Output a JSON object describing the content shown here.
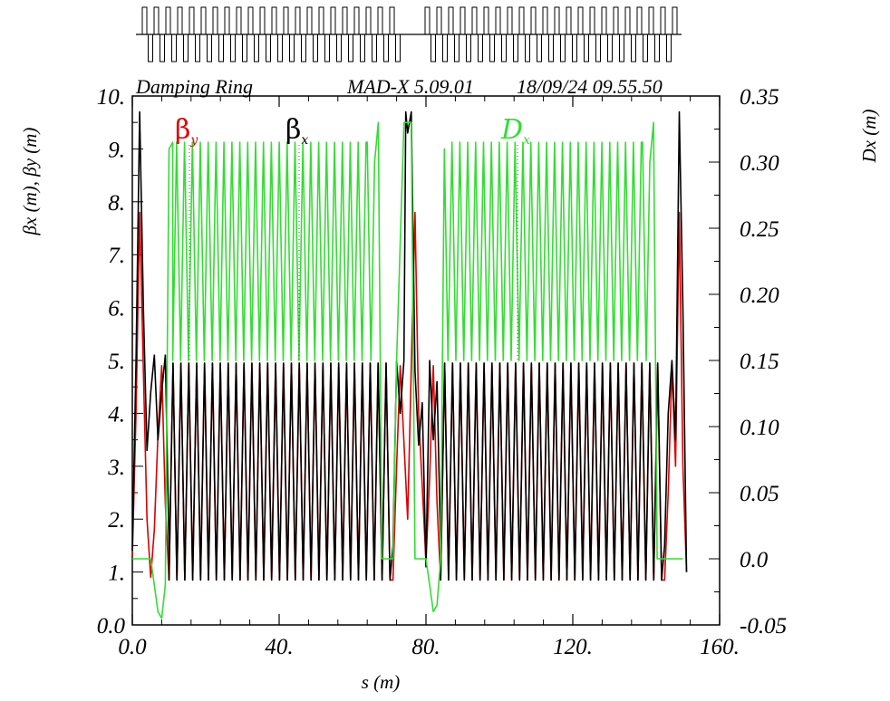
{
  "chart_data": {
    "type": "line",
    "title": "Damping Ring",
    "program": "MAD-X 5.09.01",
    "timestamp": "18/09/24 09.55.50",
    "xlabel": "s (m)",
    "ylabel_left": "βx (m), βy (m)",
    "ylabel_right": "Dx (m)",
    "xlim": [
      0,
      160
    ],
    "ylim_left": [
      0,
      10
    ],
    "ylim_right": [
      -0.05,
      0.35
    ],
    "x_ticks": [
      "0.0",
      "40.",
      "80.",
      "120.",
      "160."
    ],
    "x_tick_values": [
      0,
      40,
      80,
      120,
      160
    ],
    "y_left_ticks": [
      "0.0",
      "1.",
      "2.",
      "3.",
      "4.",
      "5.",
      "6.",
      "7.",
      "8.",
      "9.",
      "10."
    ],
    "y_left_tick_values": [
      0,
      1,
      2,
      3,
      4,
      5,
      6,
      7,
      8,
      9,
      10
    ],
    "y_right_ticks": [
      "-0.05",
      "0.0",
      "0.05",
      "0.10",
      "0.15",
      "0.20",
      "0.25",
      "0.30",
      "0.35"
    ],
    "y_right_tick_values": [
      -0.05,
      0,
      0.05,
      0.1,
      0.15,
      0.2,
      0.25,
      0.3,
      0.35
    ],
    "legend": {
      "beta_y": {
        "symbol": "β",
        "sub": "y"
      },
      "beta_x": {
        "symbol": "β",
        "sub": "x"
      },
      "disp": {
        "symbol": "D",
        "sub": "x"
      }
    },
    "series": [
      {
        "name": "βy",
        "axis": "left",
        "color": "#dd0000",
        "description": "red: arc cells oscillate between ~0.85 m and ~4.95 m; peaks ~7.8 m at ring ends",
        "points": [
          [
            0,
            1.3
          ],
          [
            1,
            4.0
          ],
          [
            2,
            7.8
          ],
          [
            3,
            4.8
          ],
          [
            4,
            2.0
          ],
          [
            5,
            0.9
          ],
          [
            6,
            1.8
          ],
          [
            7,
            3.6
          ],
          [
            8,
            4.9
          ],
          [
            9,
            2.3
          ],
          [
            10,
            0.85
          ],
          [
            71,
            0.85
          ],
          [
            72,
            3.0
          ],
          [
            73,
            4.9
          ],
          [
            75,
            2.0
          ],
          [
            77,
            7.8
          ],
          [
            78,
            4.0
          ],
          [
            80,
            1.2
          ],
          [
            81,
            2.8
          ],
          [
            82,
            4.9
          ],
          [
            83,
            2.3
          ],
          [
            84,
            0.85
          ],
          [
            145,
            0.85
          ],
          [
            146,
            2.5
          ],
          [
            147,
            4.9
          ],
          [
            148,
            3.0
          ],
          [
            149,
            7.8
          ],
          [
            150,
            3.0
          ],
          [
            151,
            1.0
          ]
        ],
        "arc_ranges": [
          [
            10,
            71
          ],
          [
            84,
            145
          ]
        ],
        "arc_period": 2.15,
        "arc_min": 0.85,
        "arc_max": 4.95
      },
      {
        "name": "βx",
        "axis": "left",
        "color": "#000000",
        "description": "black: arc cells oscillate between ~0.85 m and ~4.95 m; peaks ~9.7 m at ring ends",
        "points": [
          [
            0,
            1.4
          ],
          [
            1,
            5.0
          ],
          [
            2,
            9.7
          ],
          [
            3,
            6.0
          ],
          [
            4,
            3.3
          ],
          [
            5,
            4.4
          ],
          [
            6,
            5.1
          ],
          [
            7,
            3.5
          ],
          [
            8,
            4.4
          ],
          [
            9,
            5.1
          ],
          [
            10,
            1.5
          ],
          [
            71,
            1.5
          ],
          [
            72,
            5.0
          ],
          [
            73,
            4.0
          ],
          [
            74,
            5.0
          ],
          [
            74.5,
            9.7
          ],
          [
            75,
            9.3
          ],
          [
            76,
            9.7
          ],
          [
            77,
            4.8
          ],
          [
            78,
            3.4
          ],
          [
            79,
            4.2
          ],
          [
            80,
            1.1
          ],
          [
            81,
            5.0
          ],
          [
            82,
            3.5
          ],
          [
            83,
            4.6
          ],
          [
            84,
            1.5
          ],
          [
            145,
            1.5
          ],
          [
            146,
            4.0
          ],
          [
            147,
            5.0
          ],
          [
            148,
            3.5
          ],
          [
            149,
            9.7
          ],
          [
            150,
            6.0
          ],
          [
            151,
            1.0
          ]
        ],
        "arc_ranges": [
          [
            10,
            71
          ],
          [
            84,
            145
          ]
        ],
        "arc_period": 2.15,
        "arc_min": 0.85,
        "arc_max": 4.95
      },
      {
        "name": "Dx",
        "axis": "right",
        "color": "#33dd33",
        "description": "green dispersion: arc cells oscillate between ~0.15 m and ~0.315 m; dips to ~-0.045 m near ends",
        "points": [
          [
            0,
            0.0
          ],
          [
            5,
            0.0
          ],
          [
            6,
            -0.02
          ],
          [
            7,
            -0.04
          ],
          [
            8,
            -0.045
          ],
          [
            9,
            -0.02
          ],
          [
            10,
            0.31
          ],
          [
            11,
            0.315
          ],
          [
            64,
            0.315
          ],
          [
            65,
            0.15
          ],
          [
            66,
            0.3
          ],
          [
            67,
            0.33
          ],
          [
            68,
            0.0
          ],
          [
            71,
            0.0
          ],
          [
            72,
            0.15
          ],
          [
            74,
            0.33
          ],
          [
            76,
            0.33
          ],
          [
            77,
            0.0
          ],
          [
            80,
            0.0
          ],
          [
            81,
            -0.02
          ],
          [
            82,
            -0.04
          ],
          [
            83,
            -0.035
          ],
          [
            84,
            0.0
          ],
          [
            85,
            0.31
          ],
          [
            139,
            0.315
          ],
          [
            140,
            0.15
          ],
          [
            141,
            0.3
          ],
          [
            142,
            0.33
          ],
          [
            143,
            0.0
          ],
          [
            150,
            0.0
          ]
        ],
        "arc_ranges": [
          [
            11,
            64
          ],
          [
            86,
            139
          ]
        ],
        "arc_period": 2.15,
        "arc_min": 0.15,
        "arc_max": 0.315
      }
    ]
  }
}
